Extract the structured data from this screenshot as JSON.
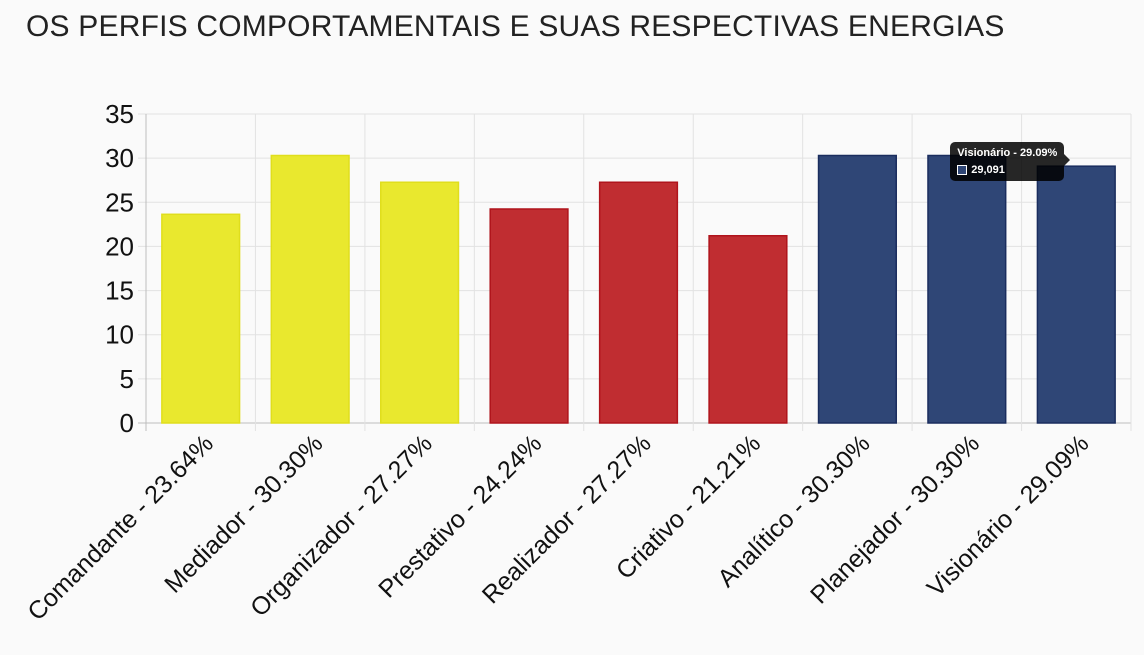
{
  "page": {
    "title": "OS PERFIS COMPORTAMENTAIS E SUAS RESPECTIVAS ENERGIAS"
  },
  "chart_data": {
    "type": "bar",
    "title": "OS PERFIS COMPORTAMENTAIS E SUAS RESPECTIVAS ENERGIAS",
    "categories": [
      "Comandante - 23.64%",
      "Mediador - 30.30%",
      "Organizador - 27.27%",
      "Prestativo - 24.24%",
      "Realizador - 27.27%",
      "Criativo - 21.21%",
      "Analítico - 30.30%",
      "Planejador - 30.30%",
      "Visionário - 29.09%"
    ],
    "values": [
      23.64,
      30.3,
      27.27,
      24.24,
      27.27,
      21.21,
      30.3,
      30.3,
      29.09
    ],
    "colors": [
      "#e9e82e",
      "#e9e82e",
      "#e9e82e",
      "#c02d31",
      "#c02d31",
      "#c02d31",
      "#2f4676",
      "#2f4676",
      "#2f4676"
    ],
    "border_colors": [
      "#e0de1c",
      "#e0de1c",
      "#e0de1c",
      "#b0141c",
      "#b0141c",
      "#b0141c",
      "#1a2d5e",
      "#1a2d5e",
      "#1a2d5e"
    ],
    "ylim": [
      0,
      35
    ],
    "yticks": [
      "0",
      "5",
      "10",
      "15",
      "20",
      "25",
      "30",
      "35"
    ],
    "grid": true,
    "xlabel": "",
    "ylabel": ""
  },
  "tooltip": {
    "title": "Visionário - 29.09%",
    "value_label": "29,091",
    "swatch_color": "#2f4676"
  }
}
